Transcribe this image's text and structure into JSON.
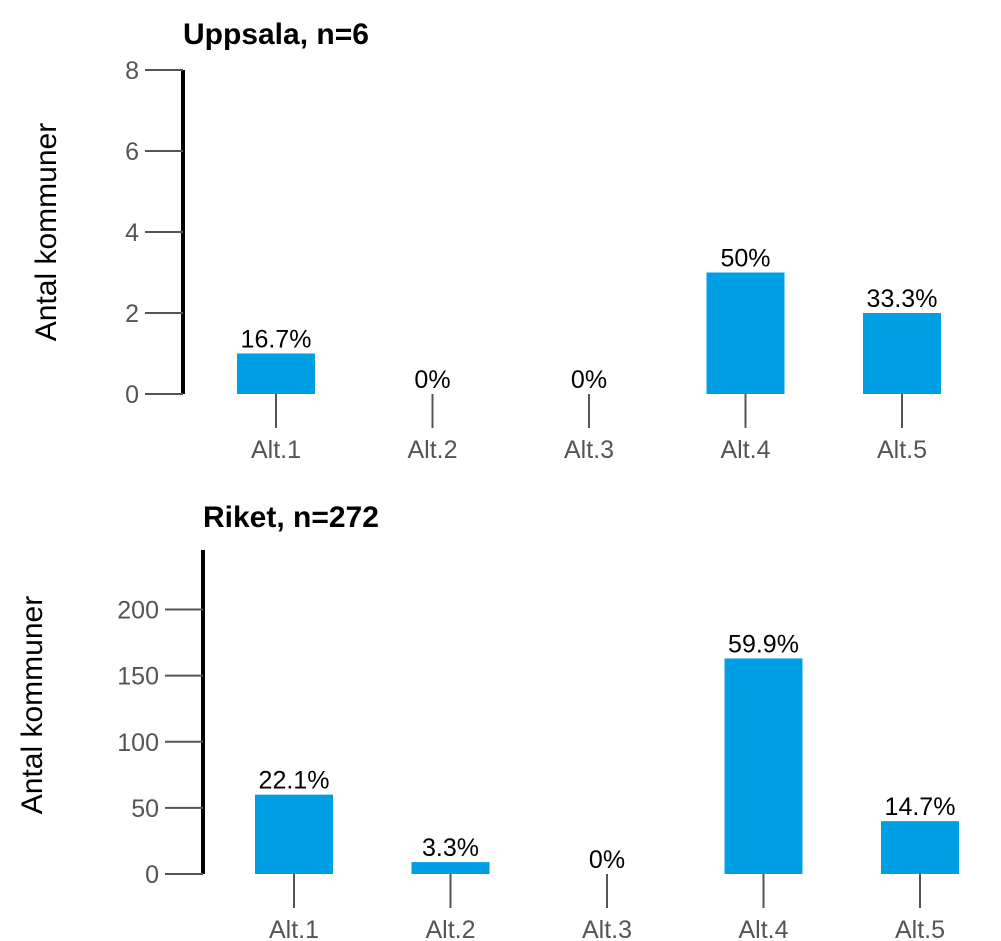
{
  "chart_data": [
    {
      "type": "bar",
      "title": "Uppsala, n=6",
      "ylabel": "Antal kommuner",
      "categories": [
        "Alt.1",
        "Alt.2",
        "Alt.3",
        "Alt.4",
        "Alt.5"
      ],
      "values": [
        1,
        0,
        0,
        3,
        2
      ],
      "data_labels": [
        "16.7%",
        "0%",
        "0%",
        "50%",
        "33.3%"
      ],
      "yticks": [
        "0",
        "2",
        "4",
        "6",
        "8"
      ],
      "ytick_values": [
        0,
        2,
        4,
        6,
        8
      ],
      "ylim": [
        0,
        8
      ],
      "bar_color": "#009FE3",
      "grid": false
    },
    {
      "type": "bar",
      "title": "Riket, n=272",
      "ylabel": "Antal kommuner",
      "categories": [
        "Alt.1",
        "Alt.2",
        "Alt.3",
        "Alt.4",
        "Alt.5"
      ],
      "values": [
        60,
        9,
        0,
        163,
        40
      ],
      "data_labels": [
        "22.1%",
        "3.3%",
        "0%",
        "59.9%",
        "14.7%"
      ],
      "yticks": [
        "0",
        "50",
        "100",
        "150",
        "200"
      ],
      "ytick_values": [
        0,
        50,
        100,
        150,
        200
      ],
      "ylim": [
        0,
        245
      ],
      "bar_color": "#009FE3",
      "grid": false
    }
  ]
}
